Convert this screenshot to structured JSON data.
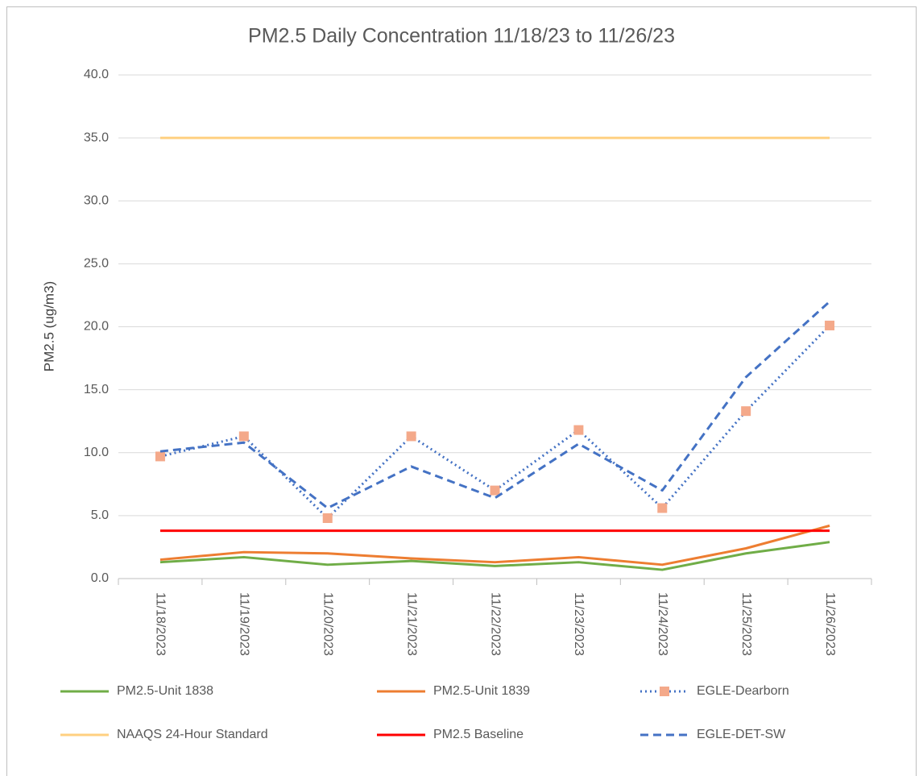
{
  "chart_data": {
    "type": "line",
    "title": "PM2.5 Daily Concentration 11/18/23 to 11/26/23",
    "y_label": "PM2.5 (ug/m3)",
    "categories": [
      "11/18/2023",
      "11/19/2023",
      "11/20/2023",
      "11/21/2023",
      "11/22/2023",
      "11/23/2023",
      "11/24/2023",
      "11/25/2023",
      "11/26/2023"
    ],
    "series": [
      {
        "name": "PM2.5-Unit 1838",
        "color": "#70ad47",
        "style": "solid",
        "values": [
          1.3,
          1.7,
          1.1,
          1.4,
          1.0,
          1.3,
          0.7,
          2.0,
          2.9
        ]
      },
      {
        "name": "PM2.5-Unit 1839",
        "color": "#ed7d31",
        "style": "solid",
        "values": [
          1.5,
          2.1,
          2.0,
          1.6,
          1.3,
          1.7,
          1.1,
          2.4,
          4.2
        ]
      },
      {
        "name": "EGLE-Dearborn",
        "color": "#4472c4",
        "style": "dotted",
        "marker": "square",
        "marker_color": "#f4a98a",
        "values": [
          9.7,
          11.3,
          4.8,
          11.3,
          7.0,
          11.8,
          5.6,
          13.3,
          20.1
        ]
      },
      {
        "name": "NAAQS 24-Hour Standard",
        "color": "#ffd080",
        "style": "solid",
        "values": [
          35,
          35,
          35,
          35,
          35,
          35,
          35,
          35,
          35
        ]
      },
      {
        "name": "PM2.5 Baseline",
        "color": "#ff0000",
        "style": "solid",
        "values": [
          3.8,
          3.8,
          3.8,
          3.8,
          3.8,
          3.8,
          3.8,
          3.8,
          3.8
        ]
      },
      {
        "name": "EGLE-DET-SW",
        "color": "#4472c4",
        "style": "dashed",
        "values": [
          10.1,
          10.8,
          5.6,
          8.9,
          6.4,
          10.7,
          7.0,
          16.0,
          22.0
        ]
      }
    ],
    "ylim": [
      0,
      40
    ],
    "yticks": [
      {
        "value": 0,
        "label": "0.0"
      },
      {
        "value": 5,
        "label": "5.0"
      },
      {
        "value": 10,
        "label": "10.0"
      },
      {
        "value": 15,
        "label": "15.0"
      },
      {
        "value": 20,
        "label": "20.0"
      },
      {
        "value": 25,
        "label": "25.0"
      },
      {
        "value": 30,
        "label": "30.0"
      },
      {
        "value": 35,
        "label": "35.0"
      },
      {
        "value": 40,
        "label": "40.0"
      }
    ],
    "grid": true,
    "legend": "bottom"
  }
}
